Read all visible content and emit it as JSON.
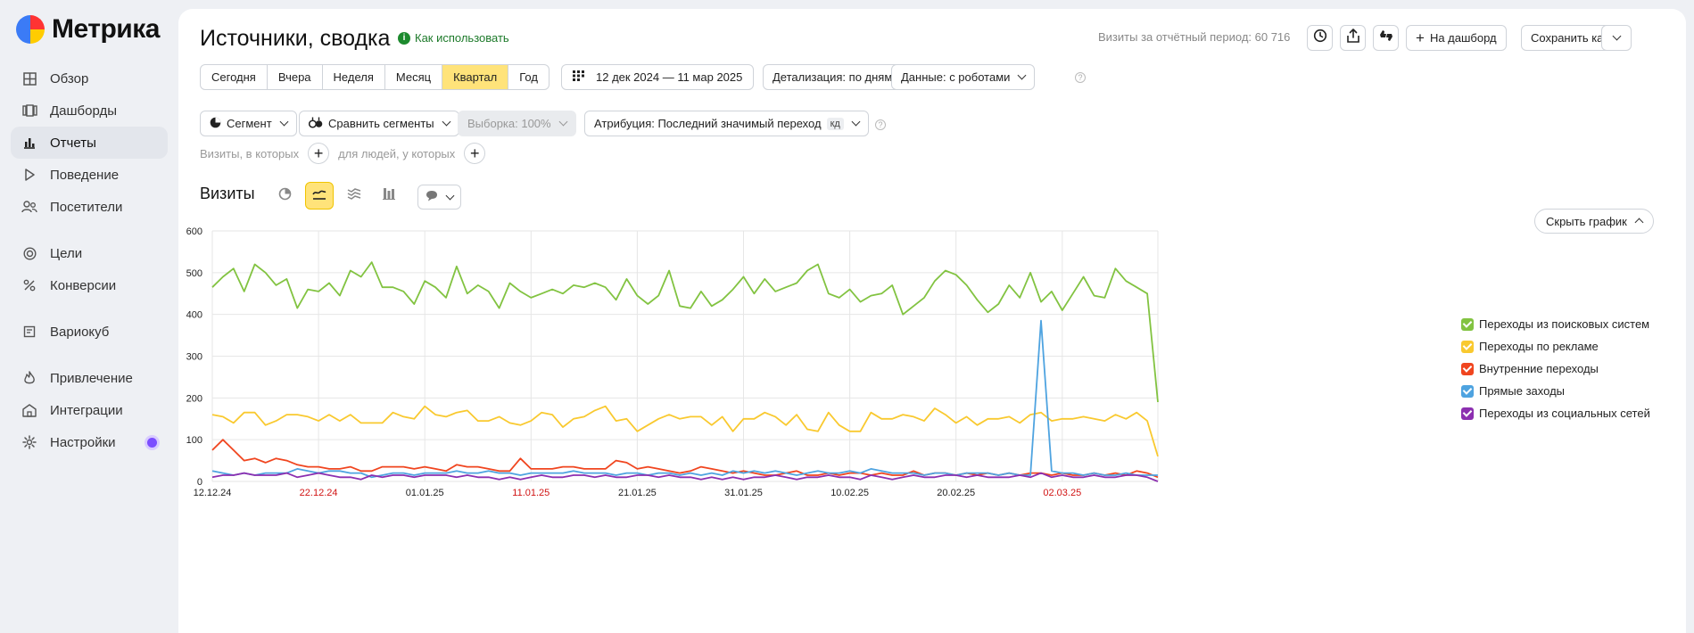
{
  "brand": {
    "name": "Метрика"
  },
  "sidebar": {
    "items": [
      {
        "label": "Обзор",
        "icon": "grid-icon"
      },
      {
        "label": "Дашборды",
        "icon": "dashboards-icon"
      },
      {
        "label": "Отчеты",
        "icon": "bar-chart-icon",
        "active": true
      },
      {
        "label": "Поведение",
        "icon": "play-icon"
      },
      {
        "label": "Посетители",
        "icon": "users-icon"
      },
      {
        "label": "Цели",
        "icon": "target-icon"
      },
      {
        "label": "Конверсии",
        "icon": "percent-icon"
      },
      {
        "label": "Вариокуб",
        "icon": "cube-icon"
      },
      {
        "label": "Привлечение",
        "icon": "flame-icon"
      },
      {
        "label": "Интеграции",
        "icon": "puzzle-icon"
      },
      {
        "label": "Настройки",
        "icon": "gear-icon"
      }
    ]
  },
  "header": {
    "title": "Источники, сводка",
    "howto": "Как использовать",
    "visits_total": "Визиты за отчётный период: 60 716",
    "to_dashboard": "На дашборд",
    "save_as": "Сохранить как"
  },
  "periods": [
    "Сегодня",
    "Вчера",
    "Неделя",
    "Месяц",
    "Квартал",
    "Год"
  ],
  "active_period": "Квартал",
  "date_range": "12 дек 2024 — 11 мар 2025",
  "detail": "Детализация: по дням",
  "data_mode": "Данные: с роботами",
  "segment": "Сегмент",
  "compare": "Сравнить сегменты",
  "sample": "Выборка: 100%",
  "attribution": "Атрибуция: Последний значимый переход",
  "attribution_badge": "кд",
  "filters": {
    "visits_where": "Визиты, в которых",
    "people_where": "для людей, у которых"
  },
  "chart_section": {
    "title": "Визиты",
    "hide": "Скрыть график"
  },
  "colors": {
    "search": "#82c341",
    "ads": "#f9c92f",
    "internal": "#f0451f",
    "direct": "#4ea3e0",
    "social": "#8c2fb0",
    "accent": "#ffe37a",
    "holiday": "#d11414"
  },
  "chart_data": {
    "type": "line",
    "title": "",
    "xlabel": "",
    "ylabel": "",
    "ylim": [
      0,
      600
    ],
    "yticks": [
      0,
      100,
      200,
      300,
      400,
      500,
      600
    ],
    "grid": true,
    "legend_position": "right",
    "x_start": "2024-12-12",
    "x_ticks": [
      {
        "label": "12.12.24",
        "holiday": false
      },
      {
        "label": "22.12.24",
        "holiday": true
      },
      {
        "label": "01.01.25",
        "holiday": false
      },
      {
        "label": "11.01.25",
        "holiday": true
      },
      {
        "label": "21.01.25",
        "holiday": false
      },
      {
        "label": "31.01.25",
        "holiday": false
      },
      {
        "label": "10.02.25",
        "holiday": false
      },
      {
        "label": "20.02.25",
        "holiday": false
      },
      {
        "label": "02.03.25",
        "holiday": true
      }
    ],
    "series": [
      {
        "name": "Переходы из поисковых систем",
        "color": "#82c341",
        "values": [
          465,
          490,
          510,
          455,
          520,
          500,
          470,
          485,
          415,
          460,
          455,
          475,
          445,
          505,
          490,
          525,
          465,
          465,
          455,
          425,
          480,
          465,
          440,
          515,
          450,
          470,
          455,
          415,
          475,
          455,
          440,
          450,
          460,
          450,
          470,
          465,
          475,
          465,
          435,
          485,
          445,
          425,
          445,
          505,
          420,
          415,
          455,
          420,
          435,
          460,
          490,
          450,
          485,
          455,
          465,
          475,
          505,
          520,
          450,
          440,
          460,
          430,
          445,
          450,
          470,
          400,
          420,
          440,
          480,
          505,
          495,
          470,
          435,
          405,
          425,
          470,
          440,
          500,
          430,
          455,
          410,
          450,
          490,
          445,
          440,
          510,
          480,
          465,
          450,
          190
        ]
      },
      {
        "name": "Переходы по рекламе",
        "color": "#f9c92f",
        "values": [
          160,
          155,
          140,
          165,
          165,
          135,
          145,
          160,
          160,
          155,
          145,
          160,
          145,
          160,
          140,
          140,
          140,
          165,
          155,
          150,
          180,
          160,
          155,
          165,
          170,
          145,
          145,
          155,
          140,
          135,
          145,
          165,
          160,
          130,
          150,
          155,
          170,
          180,
          145,
          150,
          120,
          135,
          150,
          160,
          150,
          155,
          155,
          135,
          155,
          120,
          150,
          150,
          165,
          155,
          135,
          160,
          125,
          120,
          165,
          135,
          120,
          120,
          165,
          150,
          150,
          160,
          155,
          145,
          175,
          160,
          140,
          155,
          135,
          150,
          150,
          155,
          140,
          160,
          165,
          145,
          150,
          150,
          155,
          150,
          145,
          160,
          150,
          165,
          145,
          60
        ]
      },
      {
        "name": "Внутренние переходы",
        "color": "#f0451f",
        "values": [
          75,
          100,
          75,
          50,
          55,
          45,
          55,
          50,
          40,
          35,
          35,
          30,
          30,
          35,
          25,
          25,
          35,
          35,
          35,
          30,
          35,
          30,
          25,
          40,
          35,
          35,
          30,
          25,
          25,
          55,
          30,
          30,
          30,
          35,
          35,
          30,
          30,
          30,
          50,
          45,
          30,
          35,
          30,
          25,
          20,
          25,
          35,
          30,
          25,
          20,
          25,
          20,
          15,
          15,
          20,
          25,
          15,
          15,
          20,
          15,
          20,
          20,
          15,
          20,
          15,
          15,
          25,
          15,
          20,
          20,
          15,
          20,
          15,
          20,
          15,
          20,
          15,
          20,
          20,
          15,
          20,
          15,
          15,
          20,
          15,
          20,
          15,
          25,
          20,
          10
        ]
      },
      {
        "name": "Прямые заходы",
        "color": "#4ea3e0",
        "values": [
          25,
          20,
          15,
          20,
          15,
          20,
          20,
          20,
          30,
          25,
          20,
          25,
          25,
          20,
          20,
          10,
          15,
          20,
          20,
          15,
          20,
          20,
          20,
          25,
          20,
          20,
          25,
          20,
          20,
          15,
          20,
          20,
          20,
          20,
          25,
          20,
          20,
          20,
          15,
          20,
          20,
          15,
          20,
          20,
          15,
          20,
          15,
          20,
          15,
          25,
          20,
          25,
          20,
          25,
          20,
          15,
          20,
          25,
          20,
          20,
          25,
          20,
          30,
          25,
          20,
          20,
          20,
          15,
          20,
          20,
          15,
          20,
          20,
          20,
          15,
          20,
          15,
          15,
          385,
          25,
          20,
          20,
          15,
          20,
          15,
          15,
          20,
          15,
          15,
          15
        ]
      },
      {
        "name": "Переходы из социальных сетей",
        "color": "#8c2fb0",
        "values": [
          10,
          15,
          15,
          20,
          15,
          15,
          15,
          20,
          10,
          15,
          20,
          15,
          10,
          10,
          5,
          15,
          10,
          15,
          15,
          10,
          15,
          15,
          15,
          10,
          15,
          10,
          10,
          5,
          10,
          5,
          10,
          15,
          10,
          10,
          15,
          15,
          10,
          15,
          10,
          10,
          15,
          15,
          10,
          15,
          10,
          10,
          5,
          10,
          5,
          10,
          5,
          10,
          10,
          15,
          10,
          5,
          10,
          10,
          15,
          10,
          10,
          5,
          15,
          10,
          5,
          10,
          15,
          10,
          10,
          15,
          15,
          10,
          15,
          10,
          10,
          10,
          15,
          10,
          20,
          10,
          15,
          10,
          10,
          15,
          10,
          10,
          15,
          15,
          10,
          0
        ]
      }
    ]
  }
}
